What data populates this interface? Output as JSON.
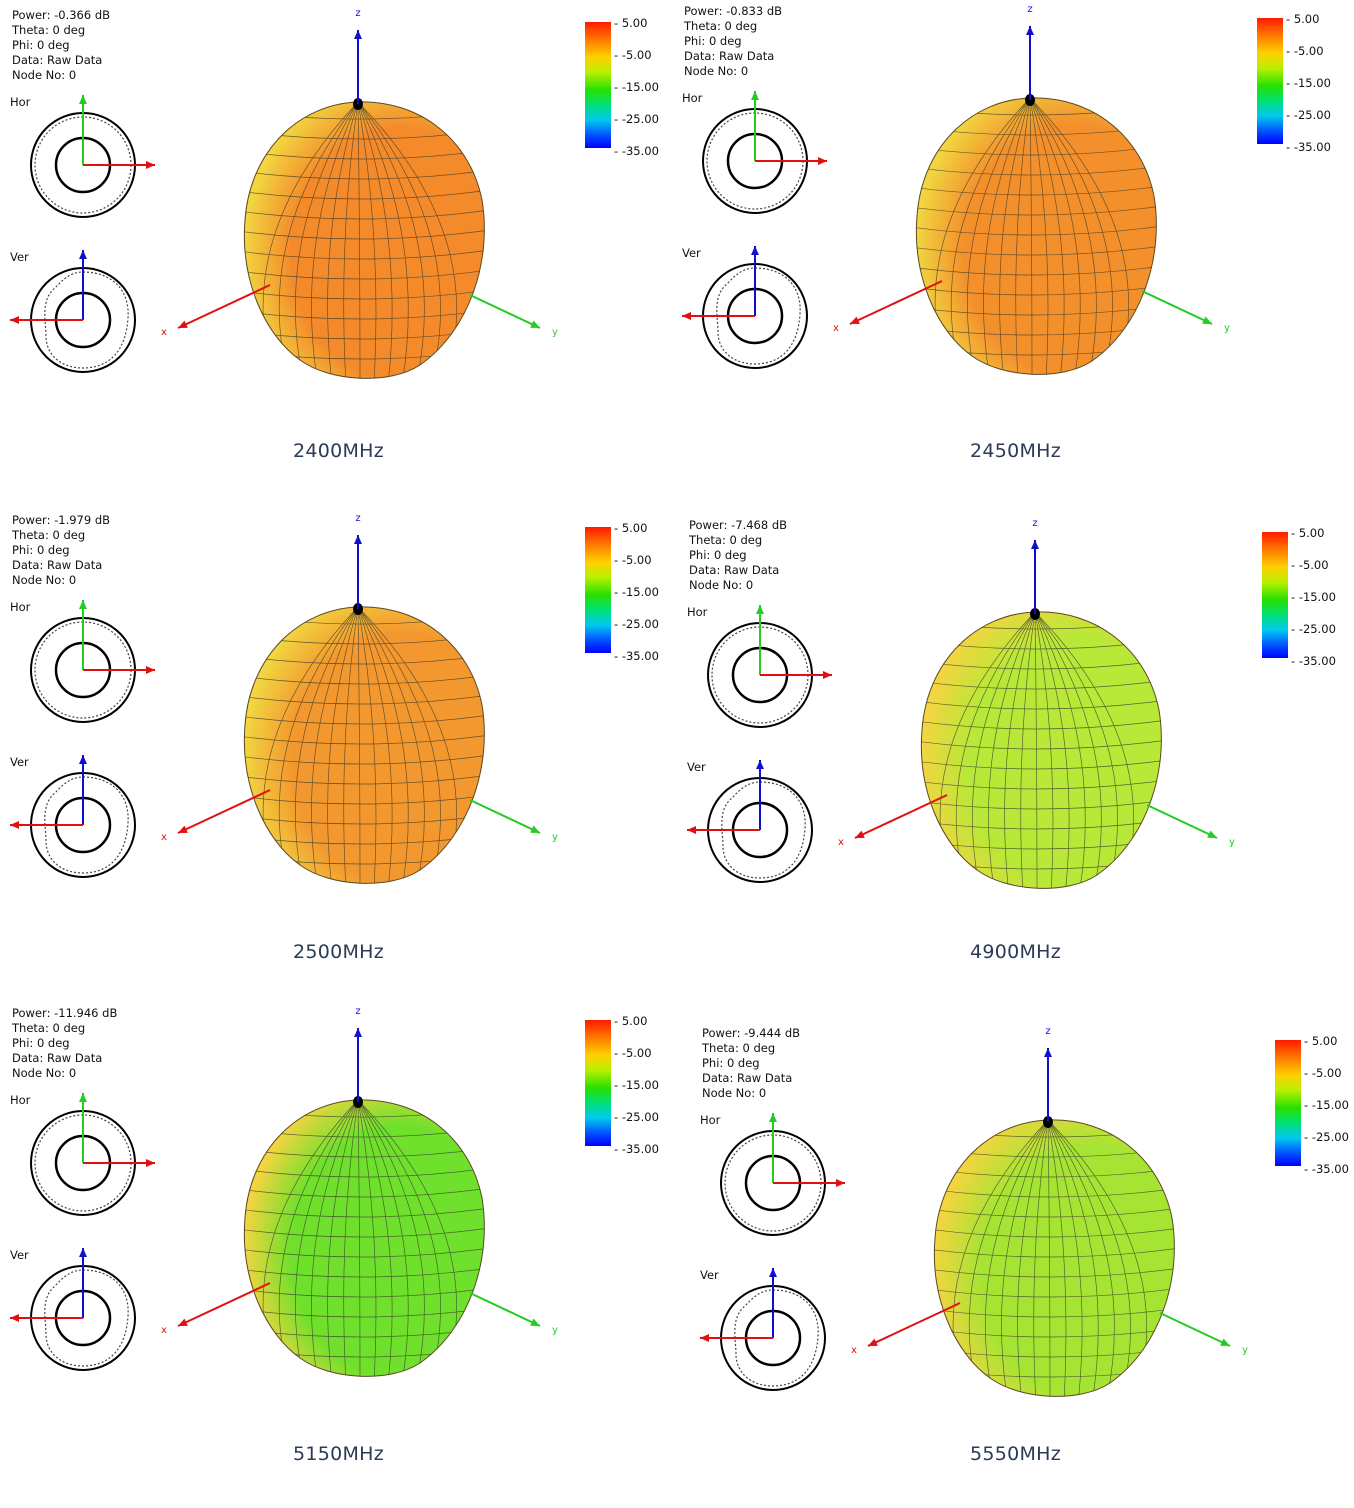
{
  "panels": [
    {
      "power": "Power: -0.366 dB",
      "theta": "Theta: 0 deg",
      "phi": "Phi: 0 deg",
      "data": "Data: Raw Data",
      "node": "Node No: 0",
      "caption": "2400MHz",
      "surface_color": "#f48a2a"
    },
    {
      "power": "Power: -0.833 dB",
      "theta": "Theta: 0 deg",
      "phi": "Phi: 0 deg",
      "data": "Data: Raw Data",
      "node": "Node No: 0",
      "caption": "2450MHz",
      "surface_color": "#f3902c"
    },
    {
      "power": "Power: -1.979 dB",
      "theta": "Theta: 0 deg",
      "phi": "Phi: 0 deg",
      "data": "Data: Raw Data",
      "node": "Node No: 0",
      "caption": "2500MHz",
      "surface_color": "#f3982e"
    },
    {
      "power": "Power: -7.468 dB",
      "theta": "Theta: 0 deg",
      "phi": "Phi: 0 deg",
      "data": "Data: Raw Data",
      "node": "Node No: 0",
      "caption": "4900MHz",
      "surface_color": "#b8e838"
    },
    {
      "power": "Power: -11.946 dB",
      "theta": "Theta: 0 deg",
      "phi": "Phi: 0 deg",
      "data": "Data: Raw Data",
      "node": "Node No: 0",
      "caption": "5150MHz",
      "surface_color": "#6fe02c"
    },
    {
      "power": "Power: -9.444 dB",
      "theta": "Theta: 0 deg",
      "phi": "Phi: 0 deg",
      "data": "Data: Raw Data",
      "node": "Node No: 0",
      "caption": "5550MHz",
      "surface_color": "#a6e434"
    }
  ],
  "labels": {
    "hor": "Hor",
    "ver": "Ver",
    "x": "x",
    "y": "y",
    "z": "z"
  },
  "legend_ticks": [
    "5.00",
    "-5.00",
    "-15.00",
    "-25.00",
    "-35.00"
  ]
}
